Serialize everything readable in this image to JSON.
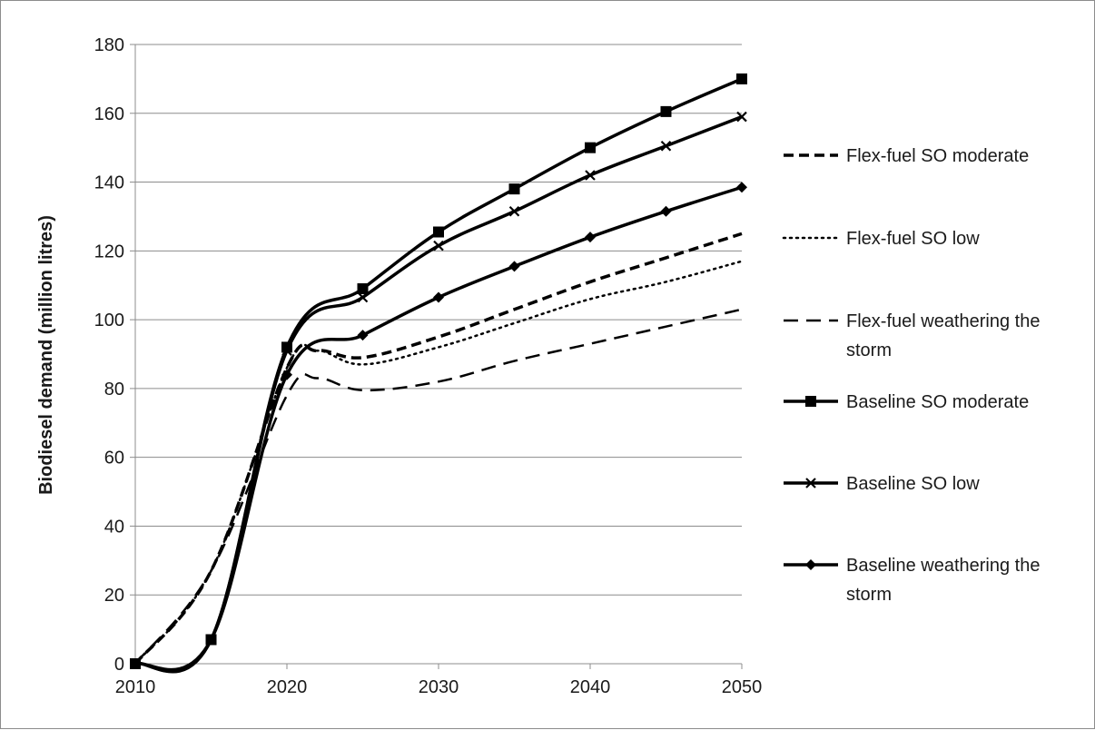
{
  "chart_data": {
    "type": "line",
    "title": "",
    "xlabel": "",
    "ylabel": "Biodiesel demand (million litres)",
    "xlim": [
      2010,
      2050
    ],
    "ylim": [
      0,
      180
    ],
    "xticks": [
      2010,
      2020,
      2030,
      2040,
      2050
    ],
    "yticks": [
      0,
      20,
      40,
      60,
      80,
      100,
      120,
      140,
      160,
      180
    ],
    "grid": "horizontal",
    "legend_position": "right",
    "series": [
      {
        "name": "Flex-fuel SO moderate",
        "style": "dashed",
        "stroke_weight": "heavy",
        "marker": "none",
        "x": [
          2010,
          2015,
          2020,
          2022,
          2025,
          2030,
          2035,
          2040,
          2045,
          2050
        ],
        "y": [
          0,
          27,
          86,
          91,
          89,
          95,
          103,
          111,
          118,
          125
        ]
      },
      {
        "name": "Flex-fuel SO low",
        "style": "dotted",
        "stroke_weight": "normal",
        "marker": "none",
        "x": [
          2010,
          2015,
          2020,
          2022,
          2025,
          2030,
          2035,
          2040,
          2045,
          2050
        ],
        "y": [
          0,
          27,
          86,
          91,
          87,
          92,
          99,
          106,
          111,
          117
        ]
      },
      {
        "name": "Flex-fuel weathering the storm",
        "style": "dashed",
        "stroke_weight": "normal",
        "marker": "none",
        "x": [
          2010,
          2015,
          2020,
          2022,
          2025,
          2030,
          2035,
          2040,
          2045,
          2050
        ],
        "y": [
          0,
          27,
          78,
          83,
          79.5,
          82,
          88,
          93,
          98,
          103
        ]
      },
      {
        "name": "Baseline SO moderate",
        "style": "solid",
        "stroke_weight": "heavy",
        "marker": "square",
        "x": [
          2010,
          2015,
          2020,
          2025,
          2030,
          2035,
          2040,
          2045,
          2050
        ],
        "y": [
          0,
          7,
          92,
          109,
          125.5,
          138,
          150,
          160.5,
          170
        ]
      },
      {
        "name": "Baseline SO low",
        "style": "solid",
        "stroke_weight": "heavy",
        "marker": "x",
        "x": [
          2010,
          2015,
          2020,
          2025,
          2030,
          2035,
          2040,
          2045,
          2050
        ],
        "y": [
          0,
          7,
          91,
          106.5,
          121.5,
          131.5,
          142,
          150.5,
          159
        ]
      },
      {
        "name": "Baseline weathering the storm",
        "style": "solid",
        "stroke_weight": "heavy",
        "marker": "diamond",
        "x": [
          2010,
          2015,
          2020,
          2025,
          2030,
          2035,
          2040,
          2045,
          2050
        ],
        "y": [
          0,
          7,
          84,
          95.5,
          106.5,
          115.5,
          124,
          131.5,
          138.5
        ]
      }
    ],
    "legend_entries": [
      {
        "lines": [
          "Flex-fuel SO moderate"
        ]
      },
      {
        "lines": [
          "Flex-fuel SO low"
        ]
      },
      {
        "lines": [
          "Flex-fuel weathering the",
          "storm"
        ]
      },
      {
        "lines": [
          "Baseline SO moderate"
        ]
      },
      {
        "lines": [
          "Baseline SO low"
        ]
      },
      {
        "lines": [
          "Baseline weathering the",
          "storm"
        ]
      }
    ]
  }
}
